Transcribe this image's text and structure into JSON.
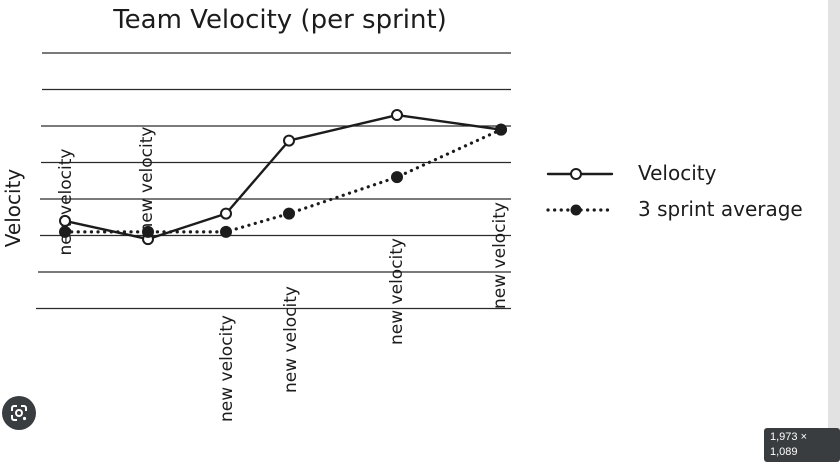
{
  "chart_data": {
    "type": "line",
    "title": "Team Velocity (per sprint)",
    "ylabel": "Velocity",
    "xlabel": "",
    "categories": [
      "new velocity",
      "new velocity",
      "new velocity",
      "new velocity",
      "new velocity",
      "new velocity"
    ],
    "x": [
      0,
      1,
      2,
      3,
      4,
      5
    ],
    "series": [
      {
        "name": "Velocity",
        "values": [
          3.4,
          2.9,
          3.6,
          5.6,
          6.3,
          5.9
        ],
        "marker": "open-circle",
        "line": "solid"
      },
      {
        "name": "3 sprint average",
        "values": [
          3.1,
          3.1,
          3.1,
          3.6,
          4.6,
          5.9
        ],
        "marker": "filled-circle",
        "line": "dotted"
      }
    ],
    "ylim": [
      0,
      8
    ],
    "grid": true,
    "ticks_labeled": false,
    "legend_position": "right"
  },
  "badges": {
    "image_size": "1,973 × 1,089"
  },
  "colors": {
    "ink": "#1c1c1c",
    "grid": "#2a2a2a",
    "badge": "#3a3d40"
  },
  "icons": {
    "lens": "google-lens-icon"
  }
}
